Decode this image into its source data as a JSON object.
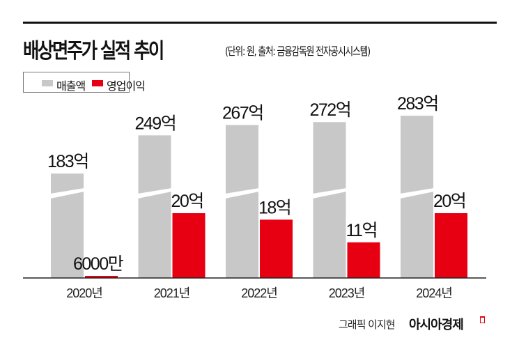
{
  "header": {
    "title": "배상면주가 실적 추이",
    "subtitle": "(단위: 원, 출처: 금융감독원 전자공시시스템)"
  },
  "chart_data": {
    "type": "bar",
    "title": "배상면주가 실적 추이",
    "subtitle": "(단위: 원, 출처: 금융감독원 전자공시시스템)",
    "categories": [
      "2020년",
      "2021년",
      "2022년",
      "2023년",
      "2024년"
    ],
    "series": [
      {
        "name": "매출액",
        "color": "#c8c8c8",
        "values": [
          183,
          249,
          267,
          272,
          283
        ],
        "labels": [
          "183억",
          "249억",
          "267억",
          "272억",
          "283억"
        ],
        "unit": "억"
      },
      {
        "name": "영업이익",
        "color": "#e60012",
        "values": [
          0.6,
          20,
          18,
          11,
          20
        ],
        "labels": [
          "6000만",
          "20억",
          "18억",
          "11억",
          "20억"
        ],
        "unit": "억"
      }
    ],
    "axis_break": true,
    "grid": false,
    "legend_position": "top-left"
  },
  "legend": {
    "items": [
      "매출액",
      "영업이익"
    ]
  },
  "footer": {
    "credit": "그래픽 이지현",
    "brand": "아시아경제"
  }
}
